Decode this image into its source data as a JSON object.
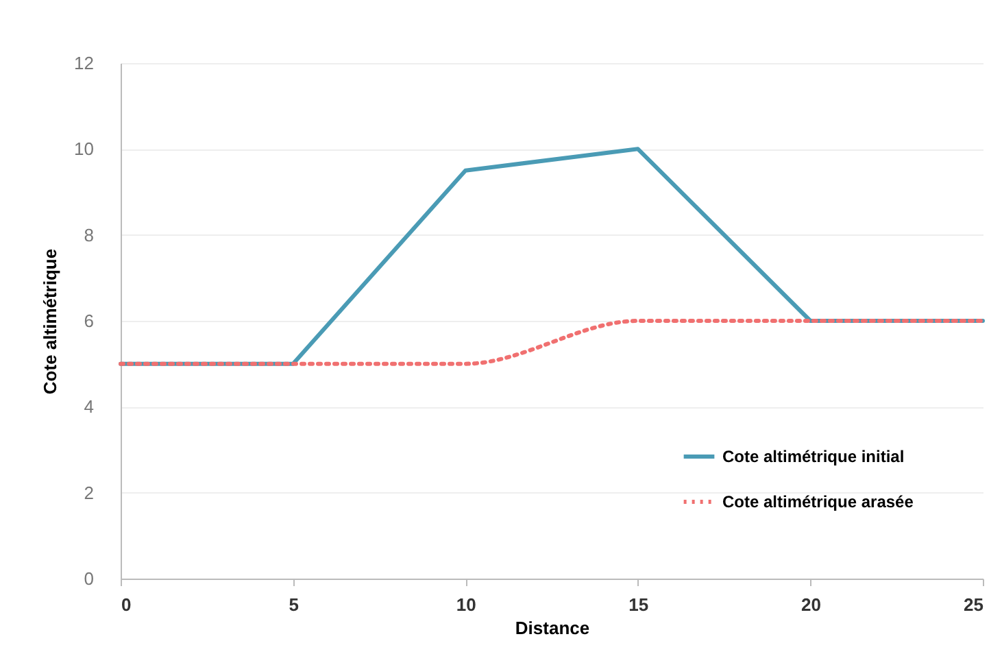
{
  "chart_data": {
    "type": "line",
    "xlabel": "Distance",
    "ylabel": "Cote altimétrique",
    "x": [
      0,
      5,
      10,
      15,
      20,
      25
    ],
    "series": [
      {
        "name": "Cote altimétrique initial",
        "color": "#4a9bb5",
        "line_style": "solid",
        "values": [
          5,
          5,
          9.5,
          10,
          6,
          6
        ]
      },
      {
        "name": "Cote altimétrique arasée",
        "color": "#f07070",
        "line_style": "dotted",
        "values": [
          5,
          5,
          5,
          6,
          6,
          6
        ]
      }
    ],
    "xlim": [
      0,
      25
    ],
    "xticks": [
      0,
      5,
      10,
      15,
      20,
      25
    ],
    "ylim": [
      0,
      12
    ],
    "yticks": [
      0,
      2,
      4,
      6,
      8,
      10,
      12
    ],
    "grid": "y",
    "legend": "bottom right",
    "marker": "none"
  }
}
